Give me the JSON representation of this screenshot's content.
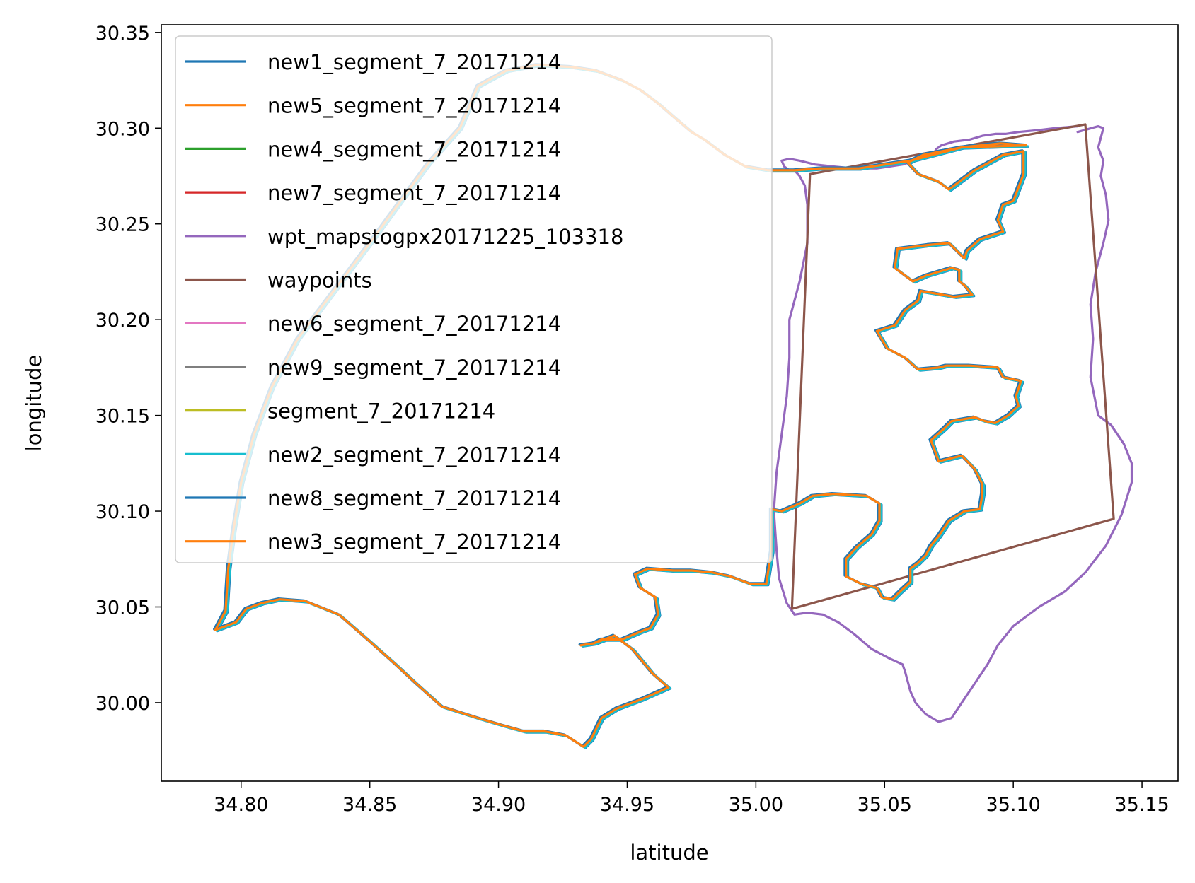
{
  "chart_data": {
    "type": "line",
    "xlabel": "latitude",
    "ylabel": "longitude",
    "xlim": [
      34.769,
      35.164
    ],
    "ylim": [
      29.959,
      30.354
    ],
    "xticks": [
      34.8,
      34.85,
      34.9,
      34.95,
      35.0,
      35.05,
      35.1,
      35.15
    ],
    "yticks": [
      30.0,
      30.05,
      30.1,
      30.15,
      30.2,
      30.25,
      30.3,
      30.35
    ],
    "xtick_labels": [
      "34.80",
      "34.85",
      "34.90",
      "34.95",
      "35.00",
      "35.05",
      "35.10",
      "35.15"
    ],
    "ytick_labels": [
      "30.00",
      "30.05",
      "30.10",
      "30.15",
      "30.20",
      "30.25",
      "30.30",
      "30.35"
    ],
    "grid": false,
    "legend_position": "upper-left",
    "track_path": [
      [
        35.105,
        30.291
      ],
      [
        35.08,
        30.29
      ],
      [
        35.065,
        30.286
      ],
      [
        35.059,
        30.282
      ],
      [
        35.063,
        30.276
      ],
      [
        35.071,
        30.272
      ],
      [
        35.075,
        30.268
      ],
      [
        35.085,
        30.278
      ],
      [
        35.096,
        30.286
      ],
      [
        35.104,
        30.288
      ],
      [
        35.104,
        30.276
      ],
      [
        35.1,
        30.262
      ],
      [
        35.096,
        30.26
      ],
      [
        35.094,
        30.252
      ],
      [
        35.096,
        30.246
      ],
      [
        35.087,
        30.242
      ],
      [
        35.082,
        30.236
      ],
      [
        35.081,
        30.232
      ],
      [
        35.075,
        30.24
      ],
      [
        35.067,
        30.239
      ],
      [
        35.055,
        30.237
      ],
      [
        35.054,
        30.227
      ],
      [
        35.061,
        30.22
      ],
      [
        35.066,
        30.223
      ],
      [
        35.076,
        30.227
      ],
      [
        35.079,
        30.226
      ],
      [
        35.079,
        30.22
      ],
      [
        35.081,
        30.218
      ],
      [
        35.084,
        30.213
      ],
      [
        35.077,
        30.212
      ],
      [
        35.064,
        30.215
      ],
      [
        35.063,
        30.21
      ],
      [
        35.058,
        30.205
      ],
      [
        35.054,
        30.197
      ],
      [
        35.047,
        30.194
      ],
      [
        35.051,
        30.185
      ],
      [
        35.058,
        30.18
      ],
      [
        35.063,
        30.174
      ],
      [
        35.071,
        30.175
      ],
      [
        35.074,
        30.176
      ],
      [
        35.083,
        30.176
      ],
      [
        35.094,
        30.175
      ],
      [
        35.096,
        30.17
      ],
      [
        35.103,
        30.168
      ],
      [
        35.101,
        30.16
      ],
      [
        35.102,
        30.155
      ],
      [
        35.098,
        30.15
      ],
      [
        35.093,
        30.146
      ],
      [
        35.089,
        30.147
      ],
      [
        35.085,
        30.149
      ],
      [
        35.076,
        30.147
      ],
      [
        35.073,
        30.143
      ],
      [
        35.068,
        30.137
      ],
      [
        35.071,
        30.126
      ],
      [
        35.08,
        30.129
      ],
      [
        35.085,
        30.122
      ],
      [
        35.088,
        30.114
      ],
      [
        35.088,
        30.109
      ],
      [
        35.087,
        30.101
      ],
      [
        35.081,
        30.1
      ],
      [
        35.075,
        30.095
      ],
      [
        35.071,
        30.087
      ],
      [
        35.068,
        30.082
      ],
      [
        35.066,
        30.077
      ],
      [
        35.063,
        30.073
      ],
      [
        35.06,
        30.07
      ],
      [
        35.06,
        30.063
      ],
      [
        35.056,
        30.058
      ],
      [
        35.053,
        30.054
      ],
      [
        35.049,
        30.055
      ],
      [
        35.047,
        30.06
      ],
      [
        35.041,
        30.062
      ],
      [
        35.035,
        30.066
      ],
      [
        35.035,
        30.075
      ],
      [
        35.039,
        30.081
      ],
      [
        35.045,
        30.088
      ],
      [
        35.048,
        30.095
      ],
      [
        35.048,
        30.104
      ],
      [
        35.043,
        30.108
      ],
      [
        35.03,
        30.109
      ],
      [
        35.022,
        30.108
      ],
      [
        35.017,
        30.104
      ],
      [
        35.01,
        30.1
      ],
      [
        35.006,
        30.101
      ],
      [
        35.006,
        30.092
      ],
      [
        35.006,
        30.079
      ],
      [
        35.004,
        30.062
      ],
      [
        34.998,
        30.062
      ],
      [
        34.99,
        30.066
      ],
      [
        34.983,
        30.068
      ],
      [
        34.975,
        30.069
      ],
      [
        34.968,
        30.069
      ],
      [
        34.958,
        30.07
      ],
      [
        34.953,
        30.067
      ],
      [
        34.955,
        30.06
      ],
      [
        34.961,
        30.055
      ],
      [
        34.962,
        30.046
      ],
      [
        34.959,
        30.039
      ],
      [
        34.955,
        30.037
      ],
      [
        34.948,
        30.033
      ],
      [
        34.94,
        30.033
      ],
      [
        34.937,
        30.031
      ],
      [
        34.932,
        30.03
      ],
      [
        34.937,
        30.031
      ],
      [
        34.945,
        30.035
      ],
      [
        34.952,
        30.028
      ],
      [
        34.96,
        30.015
      ],
      [
        34.966,
        30.008
      ],
      [
        34.956,
        30.002
      ],
      [
        34.946,
        29.997
      ],
      [
        34.94,
        29.992
      ],
      [
        34.936,
        29.981
      ],
      [
        34.933,
        29.977
      ],
      [
        34.926,
        29.983
      ],
      [
        34.918,
        29.985
      ],
      [
        34.91,
        29.985
      ],
      [
        34.902,
        29.988
      ],
      [
        34.892,
        29.992
      ],
      [
        34.878,
        29.998
      ],
      [
        34.868,
        30.01
      ],
      [
        34.86,
        30.02
      ],
      [
        34.85,
        30.032
      ],
      [
        34.838,
        30.046
      ],
      [
        34.825,
        30.053
      ],
      [
        34.815,
        30.054
      ],
      [
        34.808,
        30.052
      ],
      [
        34.802,
        30.049
      ],
      [
        34.798,
        30.042
      ],
      [
        34.79,
        30.038
      ],
      [
        34.794,
        30.048
      ],
      [
        34.795,
        30.07
      ],
      [
        34.797,
        30.09
      ],
      [
        34.8,
        30.115
      ],
      [
        34.805,
        30.14
      ],
      [
        34.812,
        30.165
      ],
      [
        34.822,
        30.19
      ],
      [
        34.836,
        30.215
      ],
      [
        34.85,
        30.24
      ],
      [
        34.862,
        30.262
      ],
      [
        34.873,
        30.282
      ],
      [
        34.885,
        30.3
      ],
      [
        34.892,
        30.322
      ],
      [
        34.903,
        30.33
      ],
      [
        34.915,
        30.333
      ],
      [
        34.928,
        30.332
      ],
      [
        34.938,
        30.33
      ],
      [
        34.948,
        30.325
      ],
      [
        34.955,
        30.32
      ],
      [
        34.962,
        30.313
      ],
      [
        34.968,
        30.306
      ],
      [
        34.975,
        30.298
      ],
      [
        34.98,
        30.294
      ],
      [
        34.988,
        30.286
      ],
      [
        34.996,
        30.28
      ],
      [
        35.005,
        30.278
      ],
      [
        35.015,
        30.278
      ],
      [
        35.025,
        30.279
      ],
      [
        35.04,
        30.279
      ],
      [
        35.06,
        30.283
      ],
      [
        35.08,
        30.29
      ],
      [
        35.095,
        30.292
      ],
      [
        35.105,
        30.291
      ]
    ],
    "series": [
      {
        "name": "new1_segment_7_20171214",
        "color": "#1f77b4",
        "offset": [
          0.0008,
          -0.0006
        ]
      },
      {
        "name": "new5_segment_7_20171214",
        "color": "#ff7f0e",
        "offset": [
          0.0,
          0.0
        ]
      },
      {
        "name": "new4_segment_7_20171214",
        "color": "#2ca02c",
        "offset": [
          0.0,
          0.0
        ]
      },
      {
        "name": "new7_segment_7_20171214",
        "color": "#d62728",
        "offset": [
          0.0,
          0.0
        ]
      },
      {
        "name": "wpt_mapstogpx20171225_103318",
        "color": "#9467bd",
        "x": [
          35.125,
          35.133,
          35.135,
          35.133,
          35.135,
          35.134,
          35.136,
          35.137,
          35.135,
          35.132,
          35.13,
          35.131,
          35.13,
          35.133,
          35.138,
          35.143,
          35.146,
          35.146,
          35.142,
          35.136,
          35.128,
          35.12,
          35.11,
          35.1,
          35.094,
          35.09,
          35.085,
          35.08,
          35.076,
          35.071,
          35.066,
          35.062,
          35.06,
          35.058,
          35.057,
          35.052,
          35.045,
          35.038,
          35.032,
          35.026,
          35.02,
          35.015,
          35.012,
          35.009,
          35.008,
          35.007,
          35.008,
          35.01,
          35.012,
          35.013,
          35.013,
          35.017,
          35.02,
          35.02,
          35.019,
          35.017,
          35.015,
          35.013,
          35.011,
          35.01,
          35.013,
          35.017,
          35.023,
          35.03,
          35.038,
          35.047,
          35.057,
          35.064,
          35.069,
          35.07,
          35.072,
          35.077,
          35.083,
          35.088,
          35.093,
          35.097,
          35.102,
          35.11,
          35.116,
          35.125
        ],
        "y": [
          30.298,
          30.301,
          30.3,
          30.29,
          30.283,
          30.275,
          30.265,
          30.252,
          30.24,
          30.225,
          30.208,
          30.19,
          30.17,
          30.15,
          30.145,
          30.135,
          30.125,
          30.115,
          30.098,
          30.082,
          30.068,
          30.058,
          30.05,
          30.04,
          30.03,
          30.02,
          30.01,
          30.0,
          29.992,
          29.99,
          29.994,
          30.0,
          30.006,
          30.016,
          30.02,
          30.023,
          30.028,
          30.036,
          30.042,
          30.046,
          30.047,
          30.046,
          30.052,
          30.065,
          30.08,
          30.1,
          30.12,
          30.14,
          30.16,
          30.18,
          30.2,
          30.22,
          30.24,
          30.26,
          30.27,
          30.275,
          30.278,
          30.278,
          30.28,
          30.283,
          30.284,
          30.283,
          30.281,
          30.28,
          30.279,
          30.279,
          30.281,
          30.284,
          30.286,
          30.289,
          30.291,
          30.293,
          30.294,
          30.296,
          30.297,
          30.297,
          30.298,
          30.299,
          30.3,
          30.301
        ]
      },
      {
        "name": "waypoints",
        "color": "#8c564b",
        "x": [
          35.021,
          35.124,
          35.128,
          35.139,
          35.014,
          35.021
        ],
        "y": [
          30.276,
          30.301,
          30.302,
          30.096,
          30.049,
          30.276
        ]
      },
      {
        "name": "new6_segment_7_20171214",
        "color": "#e377c2",
        "offset": [
          0.0,
          0.0
        ]
      },
      {
        "name": "new9_segment_7_20171214",
        "color": "#7f7f7f",
        "offset": [
          0.0,
          0.0
        ]
      },
      {
        "name": "segment_7_20171214",
        "color": "#bcbd22",
        "offset": [
          0.0,
          0.0
        ]
      },
      {
        "name": "new2_segment_7_20171214",
        "color": "#17becf",
        "offset": [
          0.0006,
          -0.0005
        ]
      },
      {
        "name": "new8_segment_7_20171214",
        "color": "#1f77b4",
        "offset": [
          -0.0005,
          0.0004
        ]
      },
      {
        "name": "new3_segment_7_20171214",
        "color": "#ff7f0e",
        "offset": [
          0.0,
          0.0
        ]
      }
    ]
  }
}
